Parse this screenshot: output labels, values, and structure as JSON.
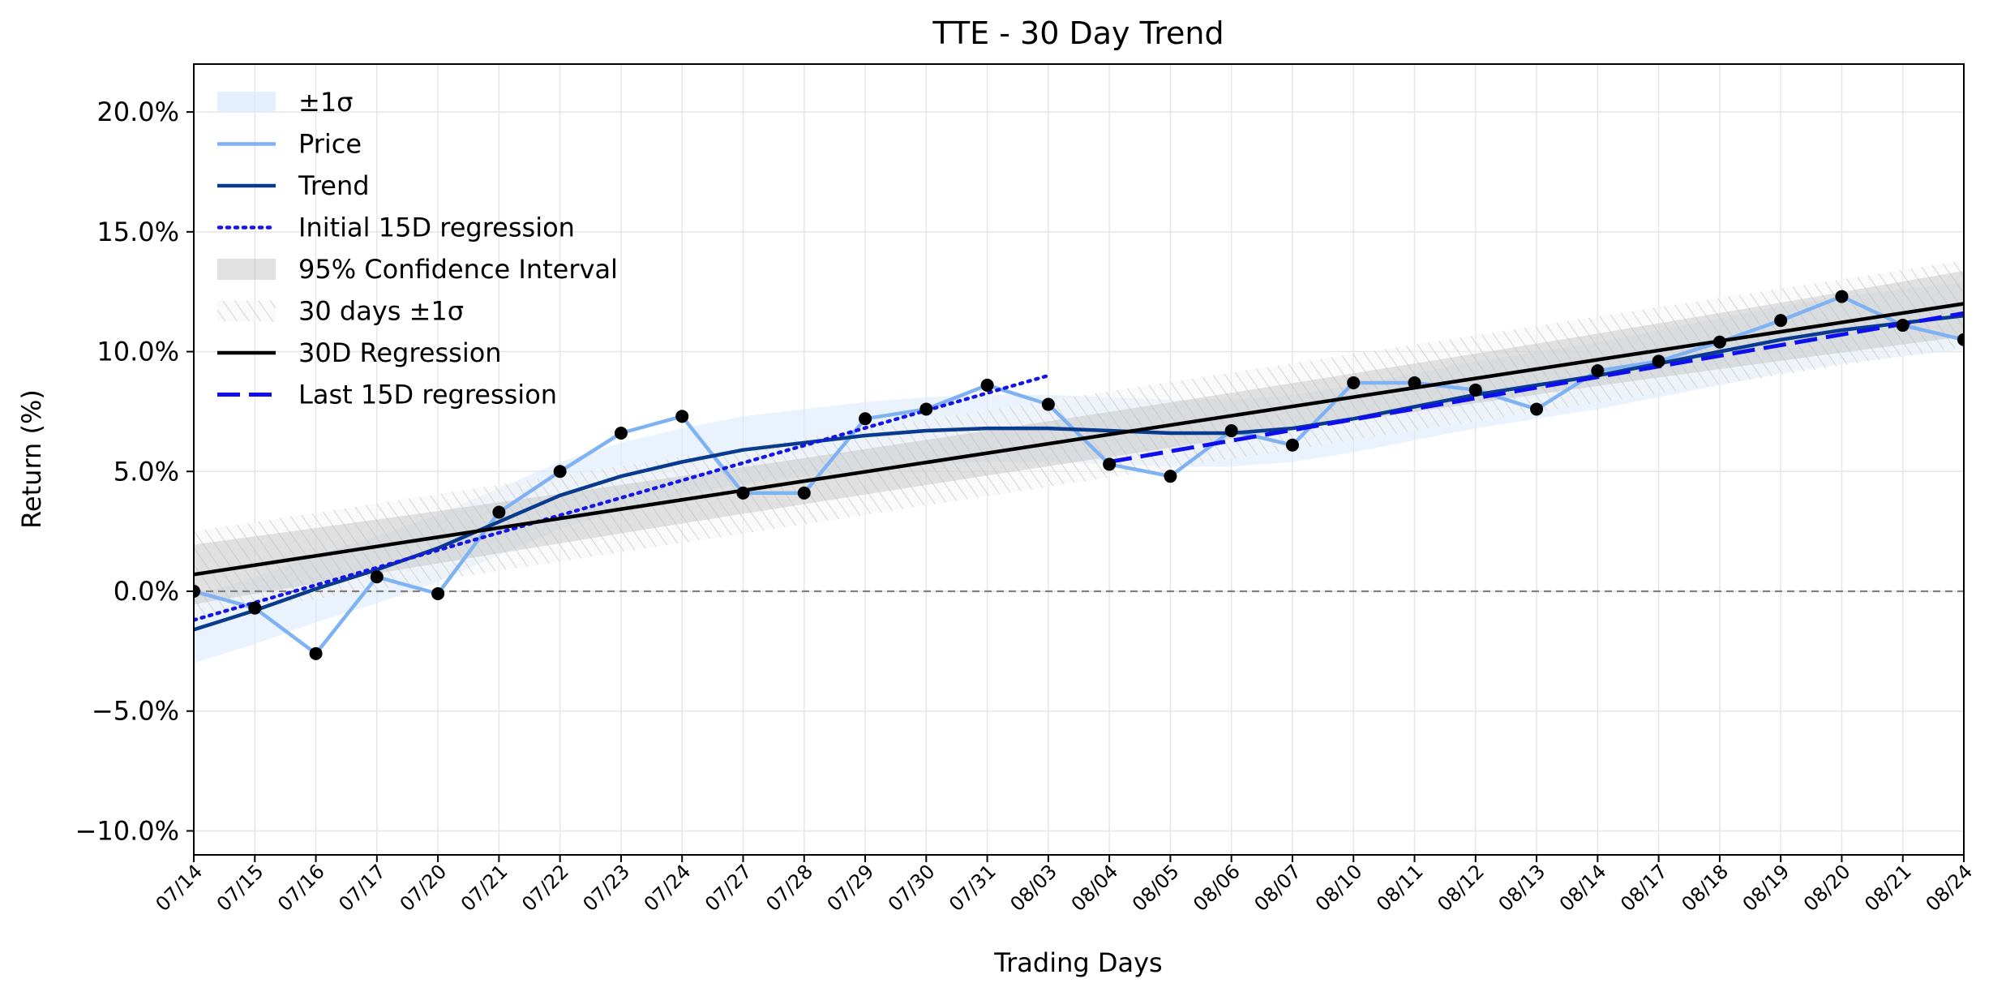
{
  "chart_data": {
    "type": "line",
    "title": "TTE - 30 Day Trend",
    "xlabel": "Trading Days",
    "ylabel": "Return (%)",
    "ylim": [
      -11.0,
      22.0
    ],
    "yticks": [
      -10.0,
      -5.0,
      0.0,
      5.0,
      10.0,
      15.0,
      20.0
    ],
    "ytick_labels": [
      "−10.0%",
      "−5.0%",
      "0.0%",
      "5.0%",
      "10.0%",
      "15.0%",
      "20.0%"
    ],
    "grid": true,
    "legend_position": "top-left",
    "categories": [
      "07/14",
      "07/15",
      "07/16",
      "07/17",
      "07/20",
      "07/21",
      "07/22",
      "07/23",
      "07/24",
      "07/27",
      "07/28",
      "07/29",
      "07/30",
      "07/31",
      "08/03",
      "08/04",
      "08/05",
      "08/06",
      "08/07",
      "08/10",
      "08/11",
      "08/12",
      "08/13",
      "08/14",
      "08/17",
      "08/18",
      "08/19",
      "08/20",
      "08/21",
      "08/24"
    ],
    "price": [
      0.0,
      -0.7,
      -2.6,
      0.6,
      -0.1,
      3.3,
      5.0,
      6.6,
      7.3,
      4.1,
      4.1,
      7.2,
      7.6,
      8.6,
      7.8,
      5.3,
      4.8,
      6.7,
      6.1,
      8.7,
      8.7,
      8.4,
      7.6,
      9.2,
      9.6,
      10.4,
      11.3,
      12.3,
      11.1,
      10.5
    ],
    "trend": [
      -1.6,
      -0.8,
      0.1,
      0.9,
      1.8,
      2.9,
      4.0,
      4.8,
      5.4,
      5.9,
      6.2,
      6.5,
      6.7,
      6.8,
      6.8,
      6.7,
      6.6,
      6.6,
      6.8,
      7.2,
      7.7,
      8.2,
      8.6,
      9.0,
      9.5,
      10.0,
      10.5,
      10.9,
      11.2,
      11.5
    ],
    "band_halfwidth": 1.4,
    "regression_30d": {
      "start": 0.7,
      "end": 12.0
    },
    "confidence_95": {
      "start_half": 1.0,
      "end_half": 1.1
    },
    "band_30d_halfwidth": 1.8,
    "regression_initial_15d": {
      "from_index": 0,
      "to_index": 14,
      "start": -1.2,
      "end": 9.0
    },
    "regression_last_15d": {
      "from_index": 15,
      "to_index": 29,
      "start": 5.4,
      "end": 11.6
    },
    "colors": {
      "price": "#7eb2f2",
      "trend": "#083a8e",
      "band": "#d8eafc",
      "regression_30d": "#000000",
      "confidence": "#bdbdbd",
      "initial_regression": "#1515e6",
      "last_regression": "#0f0fee",
      "points": "#000000",
      "zero_line": "#808080"
    },
    "legend": [
      {
        "label": "±1σ",
        "kind": "band"
      },
      {
        "label": "Price",
        "kind": "price"
      },
      {
        "label": "Trend",
        "kind": "trend"
      },
      {
        "label": "Initial 15D regression",
        "kind": "initial"
      },
      {
        "label": "95% Confidence Interval",
        "kind": "confidence"
      },
      {
        "label": "30 days ±1σ",
        "kind": "hatch"
      },
      {
        "label": "30D Regression",
        "kind": "reg30"
      },
      {
        "label": "Last 15D regression",
        "kind": "last"
      }
    ]
  }
}
